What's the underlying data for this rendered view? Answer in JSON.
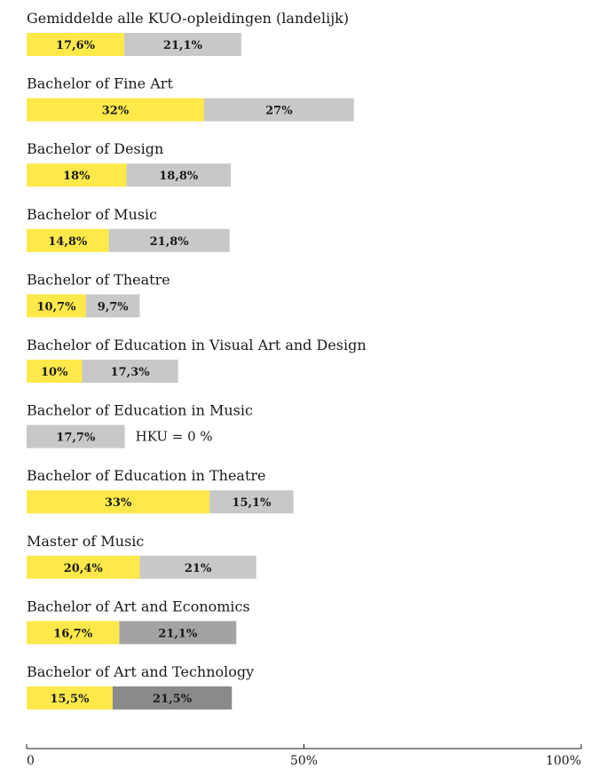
{
  "chart_data": {
    "type": "bar",
    "orientation": "horizontal",
    "stacked": true,
    "xlim": [
      0,
      100
    ],
    "ticks": [
      {
        "value": 0,
        "label": "0"
      },
      {
        "value": 50,
        "label": "50%"
      },
      {
        "value": 100,
        "label": "100%"
      }
    ],
    "categories": [
      {
        "label": "Gemiddelde alle KUO-opleidingen (landelijk)",
        "segments": [
          {
            "value": 17.6,
            "label": "17,6%",
            "color": "#ffe94a"
          },
          {
            "value": 21.1,
            "label": "21,1%",
            "color": "#c8c8ca"
          }
        ]
      },
      {
        "label": "Bachelor of Fine Art",
        "segments": [
          {
            "value": 32,
            "label": "32%",
            "color": "#ffe94a"
          },
          {
            "value": 27,
            "label": "27%",
            "color": "#c8c8ca"
          }
        ]
      },
      {
        "label": "Bachelor of Design",
        "segments": [
          {
            "value": 18,
            "label": "18%",
            "color": "#ffe94a"
          },
          {
            "value": 18.8,
            "label": "18,8%",
            "color": "#c8c8ca"
          }
        ]
      },
      {
        "label": "Bachelor of Music",
        "segments": [
          {
            "value": 14.8,
            "label": "14,8%",
            "color": "#ffe94a"
          },
          {
            "value": 21.8,
            "label": "21,8%",
            "color": "#c8c8ca"
          }
        ]
      },
      {
        "label": "Bachelor of Theatre",
        "segments": [
          {
            "value": 10.7,
            "label": "10,7%",
            "color": "#ffe94a"
          },
          {
            "value": 9.7,
            "label": "9,7%",
            "color": "#c8c8ca"
          }
        ]
      },
      {
        "label": "Bachelor of Education in Visual Art and Design",
        "segments": [
          {
            "value": 10,
            "label": "10%",
            "color": "#ffe94a"
          },
          {
            "value": 17.3,
            "label": "17,3%",
            "color": "#c8c8ca"
          }
        ]
      },
      {
        "label": "Bachelor of Education in Music",
        "segments": [
          {
            "value": 0,
            "label": "",
            "color": "#ffe94a"
          },
          {
            "value": 17.7,
            "label": "17,7%",
            "color": "#c8c8ca"
          }
        ],
        "note": "HKU = 0 %"
      },
      {
        "label": "Bachelor of Education in Theatre",
        "segments": [
          {
            "value": 33,
            "label": "33%",
            "color": "#ffe94a"
          },
          {
            "value": 15.1,
            "label": "15,1%",
            "color": "#c8c8ca"
          }
        ]
      },
      {
        "label": "Master of Music",
        "segments": [
          {
            "value": 20.4,
            "label": "20,4%",
            "color": "#ffe94a"
          },
          {
            "value": 21,
            "label": "21%",
            "color": "#c8c8ca"
          }
        ]
      },
      {
        "label": "Bachelor of Art and Economics",
        "segments": [
          {
            "value": 16.7,
            "label": "16,7%",
            "color": "#ffe94a"
          },
          {
            "value": 21.1,
            "label": "21,1%",
            "color": "#a3a3a5"
          }
        ]
      },
      {
        "label": "Bachelor of Art and Technology",
        "segments": [
          {
            "value": 15.5,
            "label": "15,5%",
            "color": "#ffe94a"
          },
          {
            "value": 21.5,
            "label": "21,5%",
            "color": "#8a8a8c"
          }
        ]
      }
    ]
  }
}
